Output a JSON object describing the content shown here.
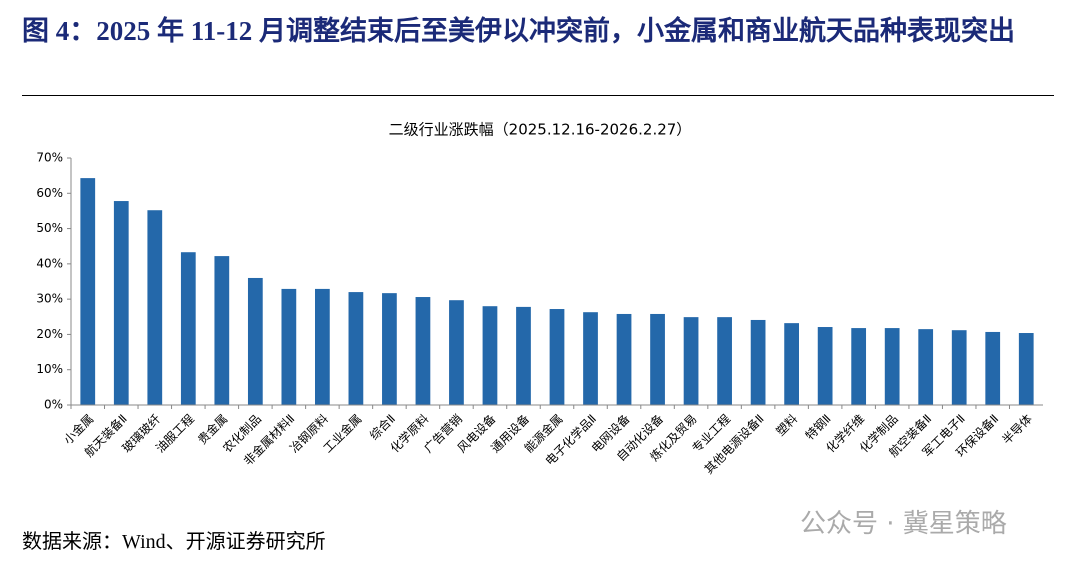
{
  "header": {
    "title": "图 4：2025 年 11-12 月调整结束后至美伊以冲突前，小金属和商业航天品种表现突出"
  },
  "chart_data": {
    "type": "bar",
    "title": "二级行业涨跌幅（2025.12.16-2026.2.27）",
    "categories": [
      "小金属",
      "航天装备Ⅱ",
      "玻璃玻纤",
      "油服工程",
      "贵金属",
      "农化制品",
      "非金属材料Ⅱ",
      "冶钢原料",
      "工业金属",
      "综合Ⅱ",
      "化学原料",
      "广告营销",
      "风电设备",
      "通用设备",
      "能源金属",
      "电子化学品Ⅱ",
      "电网设备",
      "自动化设备",
      "炼化及贸易",
      "专业工程",
      "其他电源设备Ⅱ",
      "塑料",
      "特钢Ⅱ",
      "化学纤维",
      "化学制品",
      "航空装备Ⅱ",
      "军工电子Ⅱ",
      "环保设备Ⅱ",
      "半导体"
    ],
    "values": [
      64.3,
      57.8,
      55.2,
      43.3,
      42.2,
      36.0,
      32.9,
      32.9,
      32.0,
      31.7,
      30.6,
      29.7,
      28.0,
      27.8,
      27.2,
      26.3,
      25.8,
      25.8,
      24.9,
      24.9,
      24.1,
      23.2,
      22.1,
      21.8,
      21.8,
      21.5,
      21.2,
      20.7,
      20.4
    ],
    "color": "#2468aa",
    "ylim": [
      0,
      70
    ],
    "yticks": [
      {
        "value": 0,
        "label": "0%"
      },
      {
        "value": 10,
        "label": "10%"
      },
      {
        "value": 20,
        "label": "20%"
      },
      {
        "value": 30,
        "label": "30%"
      },
      {
        "value": 40,
        "label": "40%"
      },
      {
        "value": 50,
        "label": "50%"
      },
      {
        "value": 60,
        "label": "60%"
      },
      {
        "value": 70,
        "label": "70%"
      }
    ],
    "grid": false
  },
  "footer": {
    "source": "数据来源：Wind、开源证券研究所",
    "watermark": "公众号 · 冀星策略"
  }
}
